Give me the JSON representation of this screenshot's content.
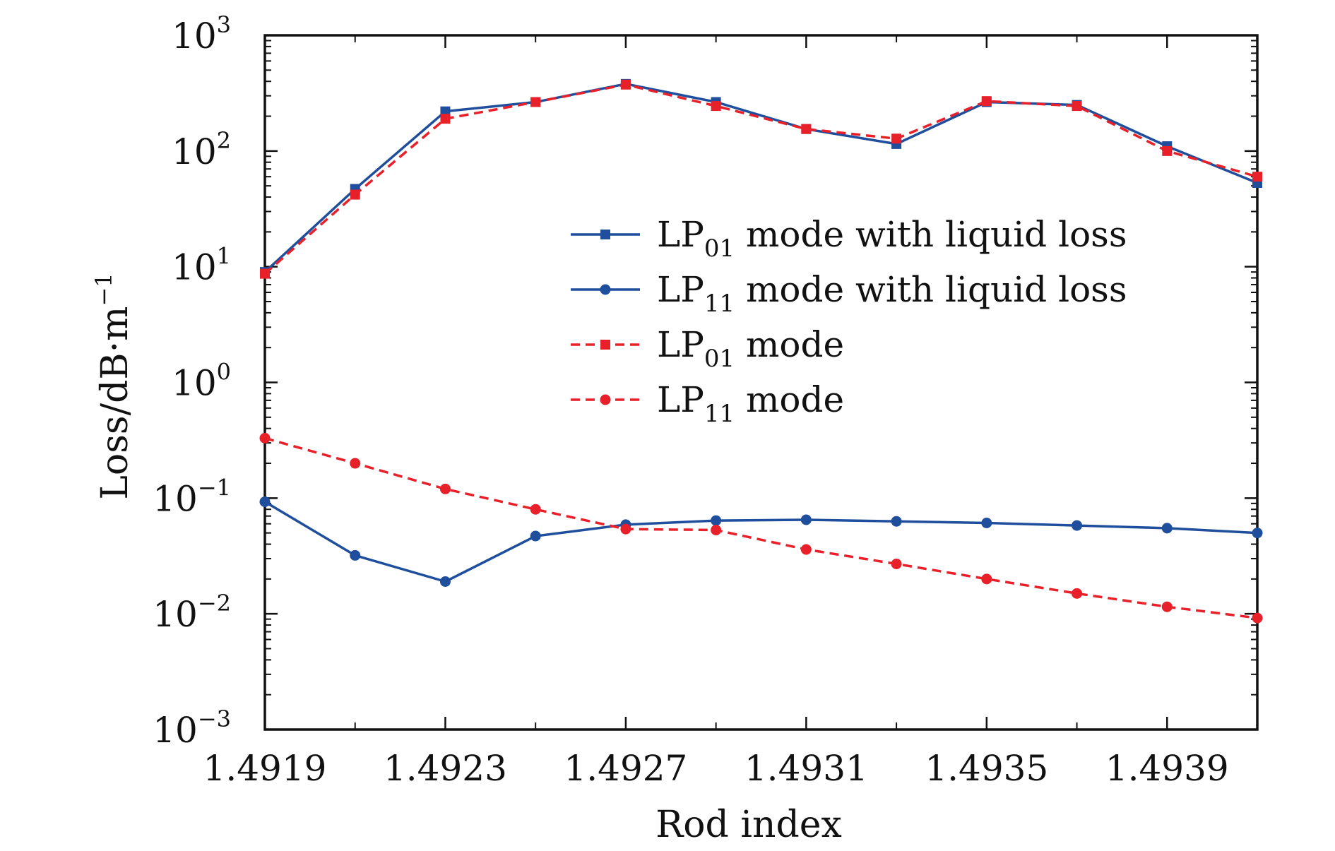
{
  "chart_data": {
    "type": "line",
    "xlabel": "Rod index",
    "ylabel": "Loss/dB·m",
    "ylabel_exponent": "−1",
    "yscale": "log",
    "xlim": [
      1.4919,
      1.4941
    ],
    "ylim": [
      0.001,
      1000
    ],
    "grid": false,
    "legend_position": "upper-right",
    "x_ticks": [
      "1.4919",
      "1.4923",
      "1.4927",
      "1.4931",
      "1.4935",
      "1.4939"
    ],
    "y_ticks": [
      {
        "value": 1000,
        "base": "10",
        "exp": "3"
      },
      {
        "value": 100,
        "base": "10",
        "exp": "2"
      },
      {
        "value": 10,
        "base": "10",
        "exp": "1"
      },
      {
        "value": 1,
        "base": "10",
        "exp": "0"
      },
      {
        "value": 0.1,
        "base": "10",
        "exp": "−1"
      },
      {
        "value": 0.01,
        "base": "10",
        "exp": "−2"
      },
      {
        "value": 0.001,
        "base": "10",
        "exp": "−3"
      }
    ],
    "x": [
      1.4919,
      1.4921,
      1.4923,
      1.4925,
      1.4927,
      1.4929,
      1.4931,
      1.4933,
      1.4935,
      1.4937,
      1.4939,
      1.4941
    ],
    "series": [
      {
        "name_main": "LP",
        "name_sub": "01",
        "name_rest": " mode with liquid loss",
        "color": "#1f4e9c",
        "dash": "solid",
        "marker": "square",
        "values": [
          9,
          47,
          220,
          265,
          380,
          265,
          155,
          115,
          265,
          250,
          110,
          53
        ]
      },
      {
        "name_main": "LP",
        "name_sub": "11",
        "name_rest": " mode with liquid loss",
        "color": "#1f4e9c",
        "dash": "solid",
        "marker": "circle",
        "values": [
          0.093,
          0.032,
          0.019,
          0.047,
          0.059,
          0.064,
          0.065,
          0.063,
          0.061,
          0.058,
          0.055,
          0.05
        ]
      },
      {
        "name_main": "LP",
        "name_sub": "01",
        "name_rest": " mode",
        "color": "#e8202a",
        "dash": "dashed",
        "marker": "square",
        "values": [
          8.7,
          42,
          190,
          265,
          375,
          245,
          155,
          128,
          270,
          245,
          100,
          60
        ]
      },
      {
        "name_main": "LP",
        "name_sub": "11",
        "name_rest": " mode",
        "color": "#e8202a",
        "dash": "dashed",
        "marker": "circle",
        "values": [
          0.33,
          0.2,
          0.12,
          0.08,
          0.054,
          0.053,
          0.036,
          0.027,
          0.02,
          0.015,
          0.0115,
          0.0092
        ]
      }
    ]
  }
}
